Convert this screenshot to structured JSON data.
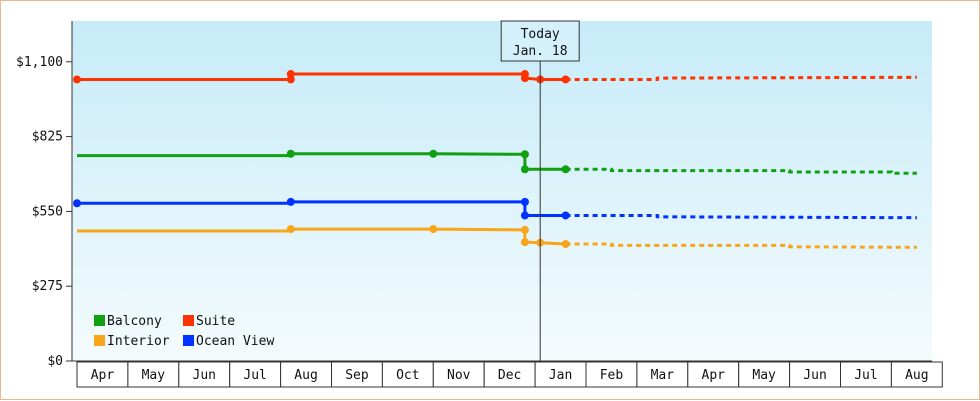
{
  "chart_data": {
    "type": "line",
    "title": "",
    "xlabel": "",
    "ylabel": "",
    "ylim": [
      0,
      1250
    ],
    "yticks": [
      0,
      275,
      550,
      825,
      1100
    ],
    "ytick_labels": [
      "$0",
      "$275",
      "$550",
      "$825",
      "$1,100"
    ],
    "months": [
      "Apr",
      "May",
      "Jun",
      "Jul",
      "Aug",
      "Sep",
      "Oct",
      "Nov",
      "Dec",
      "Jan",
      "Feb",
      "Mar",
      "Apr",
      "May",
      "Jun",
      "Jul",
      "Aug"
    ],
    "today": {
      "label_line1": "Today",
      "label_line2": "Jan. 18",
      "month_position": 9.1
    },
    "grid": false,
    "legend_position": "bottom-left",
    "series": [
      {
        "name": "Suite",
        "color": "#ff3300",
        "actual": [
          [
            0,
            1035
          ],
          [
            4.2,
            1035
          ],
          [
            4.2,
            1055
          ],
          [
            8.8,
            1055
          ],
          [
            8.8,
            1040
          ],
          [
            9.1,
            1035
          ],
          [
            9.6,
            1035
          ]
        ],
        "points": [
          [
            0,
            1035
          ],
          [
            4.2,
            1035
          ],
          [
            4.2,
            1055
          ],
          [
            8.8,
            1055
          ],
          [
            8.8,
            1040
          ],
          [
            9.1,
            1035
          ],
          [
            9.6,
            1035
          ]
        ],
        "forecast": [
          [
            9.6,
            1035
          ],
          [
            11.4,
            1035
          ],
          [
            11.4,
            1040
          ],
          [
            16.5,
            1043
          ]
        ]
      },
      {
        "name": "Balcony",
        "color": "#11a011",
        "actual": [
          [
            0,
            755
          ],
          [
            4.2,
            755
          ],
          [
            4.2,
            762
          ],
          [
            7.0,
            762
          ],
          [
            8.8,
            760
          ],
          [
            8.8,
            705
          ],
          [
            9.6,
            705
          ]
        ],
        "points": [
          [
            4.2,
            762
          ],
          [
            7.0,
            762
          ],
          [
            8.8,
            760
          ],
          [
            8.8,
            705
          ],
          [
            9.6,
            705
          ]
        ],
        "forecast": [
          [
            9.6,
            705
          ],
          [
            10.5,
            705
          ],
          [
            10.5,
            700
          ],
          [
            14.0,
            700
          ],
          [
            14.0,
            695
          ],
          [
            16.0,
            695
          ],
          [
            16.0,
            690
          ],
          [
            16.5,
            690
          ]
        ]
      },
      {
        "name": "Ocean View",
        "color": "#0033ff",
        "actual": [
          [
            0,
            580
          ],
          [
            4.2,
            580
          ],
          [
            4.2,
            585
          ],
          [
            8.8,
            585
          ],
          [
            8.8,
            535
          ],
          [
            9.6,
            535
          ]
        ],
        "points": [
          [
            0,
            580
          ],
          [
            4.2,
            585
          ],
          [
            8.8,
            585
          ],
          [
            8.8,
            535
          ],
          [
            9.6,
            535
          ]
        ],
        "forecast": [
          [
            9.6,
            535
          ],
          [
            11.4,
            535
          ],
          [
            11.4,
            530
          ],
          [
            16.5,
            527
          ]
        ]
      },
      {
        "name": "Interior",
        "color": "#f7a51b",
        "actual": [
          [
            0,
            478
          ],
          [
            4.2,
            478
          ],
          [
            4.2,
            485
          ],
          [
            7.0,
            485
          ],
          [
            8.8,
            482
          ],
          [
            8.8,
            437
          ],
          [
            9.1,
            435
          ],
          [
            9.6,
            430
          ]
        ],
        "points": [
          [
            4.2,
            485
          ],
          [
            7.0,
            485
          ],
          [
            8.8,
            482
          ],
          [
            8.8,
            437
          ],
          [
            9.1,
            435
          ],
          [
            9.6,
            430
          ]
        ],
        "forecast": [
          [
            9.6,
            430
          ],
          [
            10.5,
            430
          ],
          [
            10.5,
            425
          ],
          [
            14.0,
            425
          ],
          [
            14.0,
            420
          ],
          [
            16.5,
            418
          ]
        ]
      }
    ],
    "legend": [
      {
        "name": "Balcony",
        "color": "#11a011"
      },
      {
        "name": "Suite",
        "color": "#ff3300"
      },
      {
        "name": "Interior",
        "color": "#f7a51b"
      },
      {
        "name": "Ocean View",
        "color": "#0033ff"
      }
    ]
  }
}
